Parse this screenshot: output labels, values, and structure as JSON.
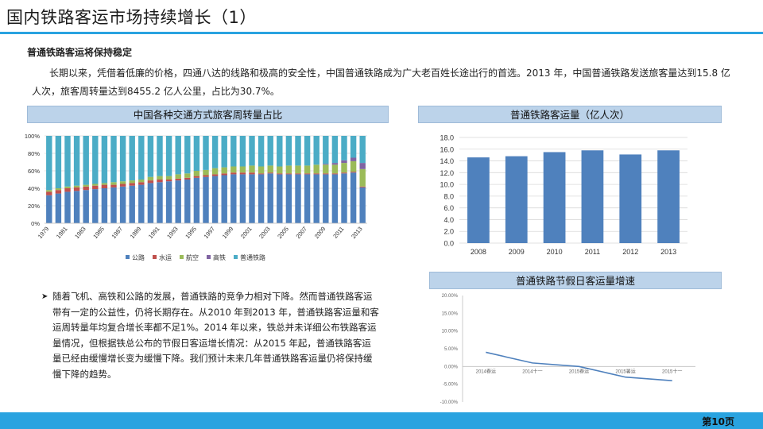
{
  "title": "国内铁路客运市场持续增长（1）",
  "subtitle": "普通铁路客运将保持稳定",
  "paragraph": "长期以来，凭借着低廉的价格，四通八达的线路和极高的安全性，中国普通铁路成为广大老百姓长途出行的首选。2013 年，中国普通铁路发送旅客量达到15.8 亿人次，旅客周转量达到8455.2 亿人公里，占比为30.7%。",
  "bullet": "随着飞机、高铁和公路的发展，普通铁路的竞争力相对下降。然而普通铁路客运带有一定的公益性，仍将长期存在。从2010 年到2013 年，普通铁路客运量和客运周转量年均复合增长率都不足1%。2014 年以来，铁总并未详细公布铁路客运量情况，但根据铁总公布的节假日客运增长情况：从2015 年起，普通铁路客运量已经由缓慢增长变为缓慢下降。我们预计未来几年普通铁路客运量仍将保持缓慢下降的趋势。",
  "bullet_mark": "➤",
  "page_number": "第10页",
  "colors": {
    "accent": "#29a3e0",
    "header_bg": "#bcd3ea",
    "bar_blue": "#4f81bd",
    "road": "#4f81bd",
    "water": "#c0504d",
    "air": "#9bbb59",
    "hsr": "#8064a2",
    "rail": "#4bacc6"
  },
  "chart_data": [
    {
      "type": "bar",
      "stacked": "percent",
      "title": "中国各种交通方式旅客周转量占比",
      "categories": [
        "1979",
        "1980",
        "1981",
        "1982",
        "1983",
        "1984",
        "1985",
        "1986",
        "1987",
        "1988",
        "1989",
        "1990",
        "1991",
        "1992",
        "1993",
        "1994",
        "1995",
        "1996",
        "1997",
        "1998",
        "1999",
        "2000",
        "2001",
        "2002",
        "2003",
        "2004",
        "2005",
        "2006",
        "2007",
        "2008",
        "2009",
        "2010",
        "2011",
        "2012",
        "2013"
      ],
      "tick_labels": [
        "1979",
        "1981",
        "1983",
        "1985",
        "1987",
        "1989",
        "1991",
        "1993",
        "1995",
        "1997",
        "1999",
        "2001",
        "2003",
        "2005",
        "2007",
        "2009",
        "2011",
        "2013"
      ],
      "y_ticks": [
        "0%",
        "20%",
        "40%",
        "60%",
        "80%",
        "100%"
      ],
      "ylim": [
        0,
        100
      ],
      "legend": "bottom",
      "series": [
        {
          "name": "公路",
          "color": "#4f81bd",
          "values": [
            32,
            34,
            36,
            37,
            38,
            39,
            40,
            41,
            42,
            43,
            44,
            46,
            47,
            48,
            49,
            50,
            52,
            53,
            54,
            55,
            56,
            56,
            56,
            56,
            57,
            56,
            56,
            56,
            56,
            56,
            56,
            56,
            57,
            58,
            41
          ]
        },
        {
          "name": "水运",
          "color": "#c0504d",
          "values": [
            4,
            4,
            4,
            4,
            4,
            4,
            4,
            3,
            3,
            3,
            3,
            3,
            3,
            2,
            2,
            2,
            2,
            2,
            2,
            2,
            2,
            2,
            2,
            1,
            1,
            1,
            1,
            1,
            1,
            1,
            1,
            1,
            1,
            1,
            1
          ]
        },
        {
          "name": "航空",
          "color": "#9bbb59",
          "values": [
            2,
            2,
            2,
            2,
            2,
            2,
            2,
            3,
            3,
            3,
            3,
            4,
            4,
            4,
            5,
            5,
            6,
            6,
            7,
            7,
            7,
            7,
            8,
            8,
            8,
            8,
            9,
            9,
            9,
            10,
            10,
            10,
            11,
            12,
            20
          ]
        },
        {
          "name": "高铁",
          "color": "#8064a2",
          "values": [
            0,
            0,
            0,
            0,
            0,
            0,
            0,
            0,
            0,
            0,
            0,
            0,
            0,
            0,
            0,
            0,
            0,
            0,
            0,
            0,
            0,
            0,
            0,
            0,
            0,
            0,
            0,
            0,
            0,
            0,
            1,
            2,
            3,
            4,
            7
          ]
        },
        {
          "name": "普通铁路",
          "color": "#4bacc6",
          "values": [
            62,
            60,
            58,
            57,
            56,
            55,
            54,
            53,
            52,
            51,
            50,
            47,
            46,
            46,
            44,
            43,
            40,
            39,
            37,
            36,
            35,
            35,
            34,
            35,
            34,
            35,
            34,
            34,
            34,
            33,
            32,
            31,
            28,
            25,
            31
          ]
        }
      ]
    },
    {
      "type": "bar",
      "title": "普通铁路客运量（亿人次）",
      "categories": [
        "2008",
        "2009",
        "2010",
        "2011",
        "2012",
        "2013"
      ],
      "values": [
        14.6,
        14.8,
        15.5,
        15.8,
        15.1,
        15.8
      ],
      "y_ticks": [
        "0.0",
        "2.0",
        "4.0",
        "6.0",
        "8.0",
        "10.0",
        "12.0",
        "14.0",
        "16.0",
        "18.0"
      ],
      "ylim": [
        0,
        18
      ]
    },
    {
      "type": "line",
      "title": "普通铁路节假日客运量增速",
      "categories": [
        "2014春运",
        "2014十一",
        "2015春运",
        "2015暑运",
        "2015十一"
      ],
      "values": [
        4.0,
        1.0,
        0.0,
        -3.0,
        -4.0
      ],
      "y_ticks": [
        "20.00%",
        "15.00%",
        "10.00%",
        "5.00%",
        "0.00%",
        "-5.00%",
        "-10.00%"
      ],
      "ylim": [
        -10,
        20
      ]
    }
  ]
}
